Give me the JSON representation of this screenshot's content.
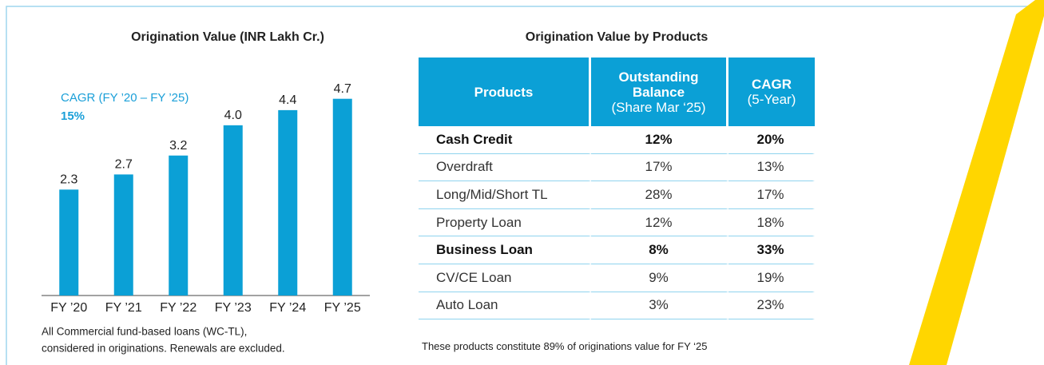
{
  "chart_data": {
    "type": "bar",
    "title": "Origination Value (INR Lakh Cr.)",
    "categories": [
      "FY ’20",
      "FY ’21",
      "FY ’22",
      "FY ’23",
      "FY ’24",
      "FY ’25"
    ],
    "values": [
      2.3,
      2.7,
      3.2,
      4.0,
      4.4,
      4.7
    ],
    "value_labels": [
      "2.3",
      "2.7",
      "3.2",
      "4.0",
      "4.4",
      "4.7"
    ],
    "color": "#0ba0d6",
    "ylim": [
      -0.5,
      5.2
    ],
    "annotation": {
      "label": "CAGR (FY ’20 – FY ’25)",
      "value": "15%"
    },
    "footnote": [
      "All Commercial fund-based loans (WC-TL),",
      "considered in originations. Renewals are excluded."
    ]
  },
  "table": {
    "title": "Origination Value by Products",
    "header": [
      {
        "label": "Products"
      },
      {
        "label": "Outstanding Balance",
        "note": "(Share Mar ‘25)"
      },
      {
        "label": "CAGR",
        "note": "(5-Year)"
      }
    ],
    "rows": [
      [
        "Cash Credit",
        "12%",
        "20%"
      ],
      [
        "Overdraft",
        "17%",
        "13%"
      ],
      [
        "Long/Mid/Short TL",
        "28%",
        "17%"
      ],
      [
        "Property Loan",
        "12%",
        "18%"
      ],
      [
        "Business Loan",
        "8%",
        "33%"
      ],
      [
        "CV/CE Loan",
        "9%",
        "19%"
      ],
      [
        "Auto Loan",
        "3%",
        "23%"
      ]
    ],
    "emphasized_rows": [
      0,
      4
    ],
    "footnote": "These products constitute 89% of originations value for FY ‘25"
  }
}
